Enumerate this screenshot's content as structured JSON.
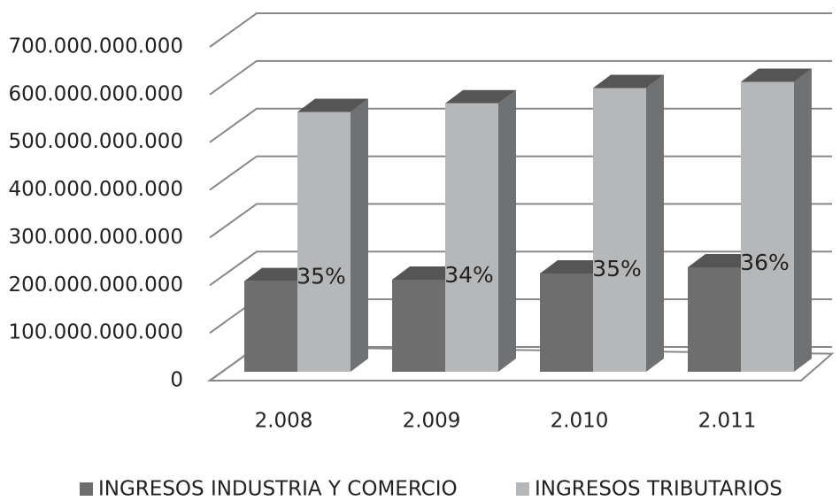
{
  "chart_data": {
    "type": "bar3d",
    "categories": [
      "2.008",
      "2.009",
      "2.010",
      "2.011"
    ],
    "series": [
      {
        "name": "INGRESOS INDUSTRIA Y COMERCIO",
        "color": "#6e6e6e",
        "values": [
          190000000000,
          193000000000,
          206000000000,
          219000000000
        ]
      },
      {
        "name": "INGRESOS TRIBUTARIOS",
        "color": "#b5b7b8",
        "values": [
          545000000000,
          563000000000,
          595000000000,
          608000000000
        ]
      }
    ],
    "annotations": [
      "35%",
      "34%",
      "35%",
      "36%"
    ],
    "ylim": [
      0,
      700000000000
    ],
    "yticks": [
      0,
      {
        "value": 100000000000,
        "label": "100.000.000.000"
      },
      {
        "value": 200000000000,
        "label": "200.000.000.000"
      },
      {
        "value": 300000000000,
        "label": "300.000.000.000"
      },
      {
        "value": 400000000000,
        "label": "400.000.000.000"
      },
      {
        "value": 500000000000,
        "label": "500.000.000.000"
      },
      {
        "value": 600000000000,
        "label": "600.000.000.000"
      },
      {
        "value": 700000000000,
        "label": "700.000.000.000"
      }
    ],
    "grid": true,
    "legend": "bottom"
  }
}
